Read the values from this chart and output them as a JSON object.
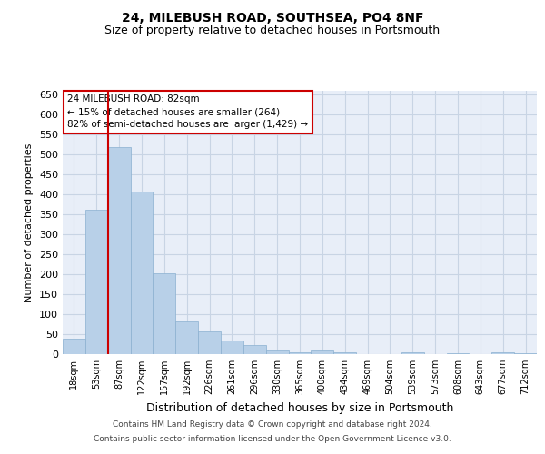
{
  "title1": "24, MILEBUSH ROAD, SOUTHSEA, PO4 8NF",
  "title2": "Size of property relative to detached houses in Portsmouth",
  "xlabel": "Distribution of detached houses by size in Portsmouth",
  "ylabel": "Number of detached properties",
  "bin_labels": [
    "18sqm",
    "53sqm",
    "87sqm",
    "122sqm",
    "157sqm",
    "192sqm",
    "226sqm",
    "261sqm",
    "296sqm",
    "330sqm",
    "365sqm",
    "400sqm",
    "434sqm",
    "469sqm",
    "504sqm",
    "539sqm",
    "573sqm",
    "608sqm",
    "643sqm",
    "677sqm",
    "712sqm"
  ],
  "bar_values": [
    38,
    363,
    519,
    408,
    203,
    82,
    56,
    35,
    23,
    9,
    5,
    8,
    5,
    1,
    0,
    5,
    0,
    2,
    0,
    5,
    2
  ],
  "bar_color": "#b8d0e8",
  "bar_edge_color": "#8ab0d0",
  "grid_color": "#c8d4e4",
  "background_color": "#e8eef8",
  "red_line_x": 1.5,
  "annotation_text": "24 MILEBUSH ROAD: 82sqm\n← 15% of detached houses are smaller (264)\n82% of semi-detached houses are larger (1,429) →",
  "annotation_box_color": "#ffffff",
  "annotation_box_edge": "#cc0000",
  "footer1": "Contains HM Land Registry data © Crown copyright and database right 2024.",
  "footer2": "Contains public sector information licensed under the Open Government Licence v3.0.",
  "ylim": [
    0,
    660
  ],
  "yticks": [
    0,
    50,
    100,
    150,
    200,
    250,
    300,
    350,
    400,
    450,
    500,
    550,
    600,
    650
  ],
  "title1_fontsize": 10,
  "title2_fontsize": 9,
  "ylabel_fontsize": 8,
  "xlabel_fontsize": 9,
  "tick_fontsize": 8,
  "xtick_fontsize": 7,
  "annot_fontsize": 7.5
}
